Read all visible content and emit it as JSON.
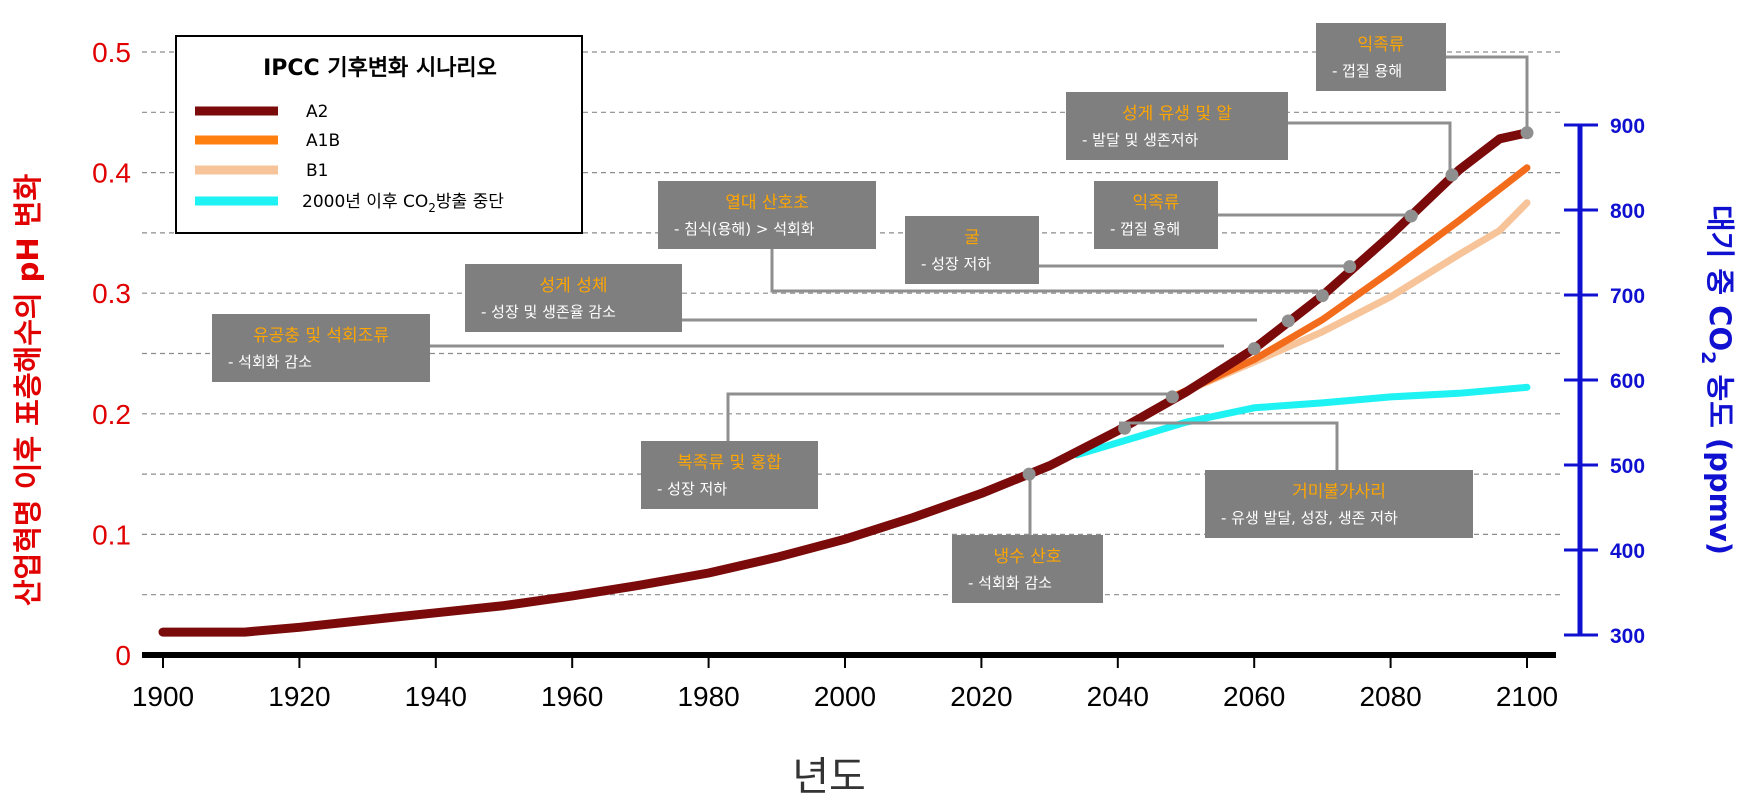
{
  "chart_data": {
    "type": "line",
    "title": "",
    "xlabel": "년도",
    "ylabel_left": "산업혁명 이후 표층해수의 pH 변화",
    "ylabel_right": "대기 중 CO2 농도 (ppmv)",
    "x_ticks": [
      "1900",
      "1920",
      "1940",
      "1960",
      "1980",
      "2000",
      "2020",
      "2040",
      "2060",
      "2080",
      "2100"
    ],
    "y_left_ticks": [
      "0",
      "0.1",
      "0.2",
      "0.3",
      "0.4",
      "0.5"
    ],
    "y_right_ticks": [
      "300",
      "400",
      "500",
      "600",
      "700",
      "800",
      "900"
    ],
    "xlim": [
      1900,
      2100
    ],
    "ylim_left": [
      0,
      0.5
    ],
    "ylim_right": [
      300,
      900
    ],
    "grid": "horizontal dashed",
    "legend": {
      "title": "IPCC 기후변화 시나리오",
      "position": "top-left",
      "entries": [
        {
          "label": "A2",
          "color": "#7b0a0a"
        },
        {
          "label": "A1B",
          "color": "#ff7f0e"
        },
        {
          "label": "B1",
          "color": "#f7c49a"
        },
        {
          "label": "2000년 이후 CO",
          "sub": "2",
          "suffix": "방출 중단",
          "color": "#1ef2f2"
        }
      ]
    },
    "series": [
      {
        "name": "A2",
        "color": "#7b0a0a",
        "x": [
          1900,
          1912,
          1920,
          1930,
          1940,
          1950,
          1960,
          1970,
          1980,
          1990,
          2000,
          2010,
          2020,
          2030,
          2040,
          2050,
          2060,
          2070,
          2080,
          2090,
          2096,
          2100
        ],
        "y": [
          0.019,
          0.019,
          0.023,
          0.029,
          0.035,
          0.041,
          0.049,
          0.058,
          0.068,
          0.081,
          0.096,
          0.114,
          0.134,
          0.157,
          0.186,
          0.218,
          0.254,
          0.298,
          0.348,
          0.402,
          0.428,
          0.433
        ]
      },
      {
        "name": "A1B",
        "color": "#f36c1c",
        "x": [
          2048,
          2060,
          2070,
          2080,
          2090,
          2100
        ],
        "y": [
          0.214,
          0.245,
          0.278,
          0.318,
          0.36,
          0.404
        ]
      },
      {
        "name": "B1",
        "color": "#f7c49a",
        "x": [
          2048,
          2060,
          2070,
          2080,
          2090,
          2096,
          2100
        ],
        "y": [
          0.214,
          0.243,
          0.268,
          0.297,
          0.332,
          0.352,
          0.375
        ]
      },
      {
        "name": "2000년 이후 CO2방출 중단",
        "color": "#1ef2f2",
        "x": [
          2034,
          2040,
          2050,
          2060,
          2070,
          2080,
          2090,
          2100
        ],
        "y": [
          0.166,
          0.176,
          0.193,
          0.205,
          0.209,
          0.214,
          0.217,
          0.222
        ]
      }
    ],
    "annotations": [
      {
        "title": "익족류",
        "sub": "- 껍질 용해",
        "x": 2100,
        "y": 0.433
      },
      {
        "title": "성게 유생 및 알",
        "sub": "- 발달 및 생존저하",
        "x": 2089,
        "y": 0.398
      },
      {
        "title": "익족류",
        "sub": "- 껍질 용해",
        "x": 2083,
        "y": 0.364
      },
      {
        "title": "열대 산호초",
        "sub": "- 침식(용해) > 석회화",
        "x": 2070,
        "y": 0.298
      },
      {
        "title": "굴",
        "sub": "- 성장 저하",
        "x": 2074,
        "y": 0.322
      },
      {
        "title": "성게 성체",
        "sub": "- 성장 및 생존율 감소",
        "x": 2065,
        "y": 0.277
      },
      {
        "title": "유공충 및 석회조류",
        "sub": "- 석회화 감소",
        "x": 2060,
        "y": 0.254
      },
      {
        "title": "복족류 및 홍합",
        "sub": "- 성장 저하",
        "x": 2048,
        "y": 0.214
      },
      {
        "title": "거미불가사리",
        "sub": "- 유생 발달, 성장, 생존 저하",
        "x": 2041,
        "y": 0.188
      },
      {
        "title": "냉수 산호",
        "sub": "- 석회화 감소",
        "x": 2027,
        "y": 0.15
      }
    ]
  }
}
